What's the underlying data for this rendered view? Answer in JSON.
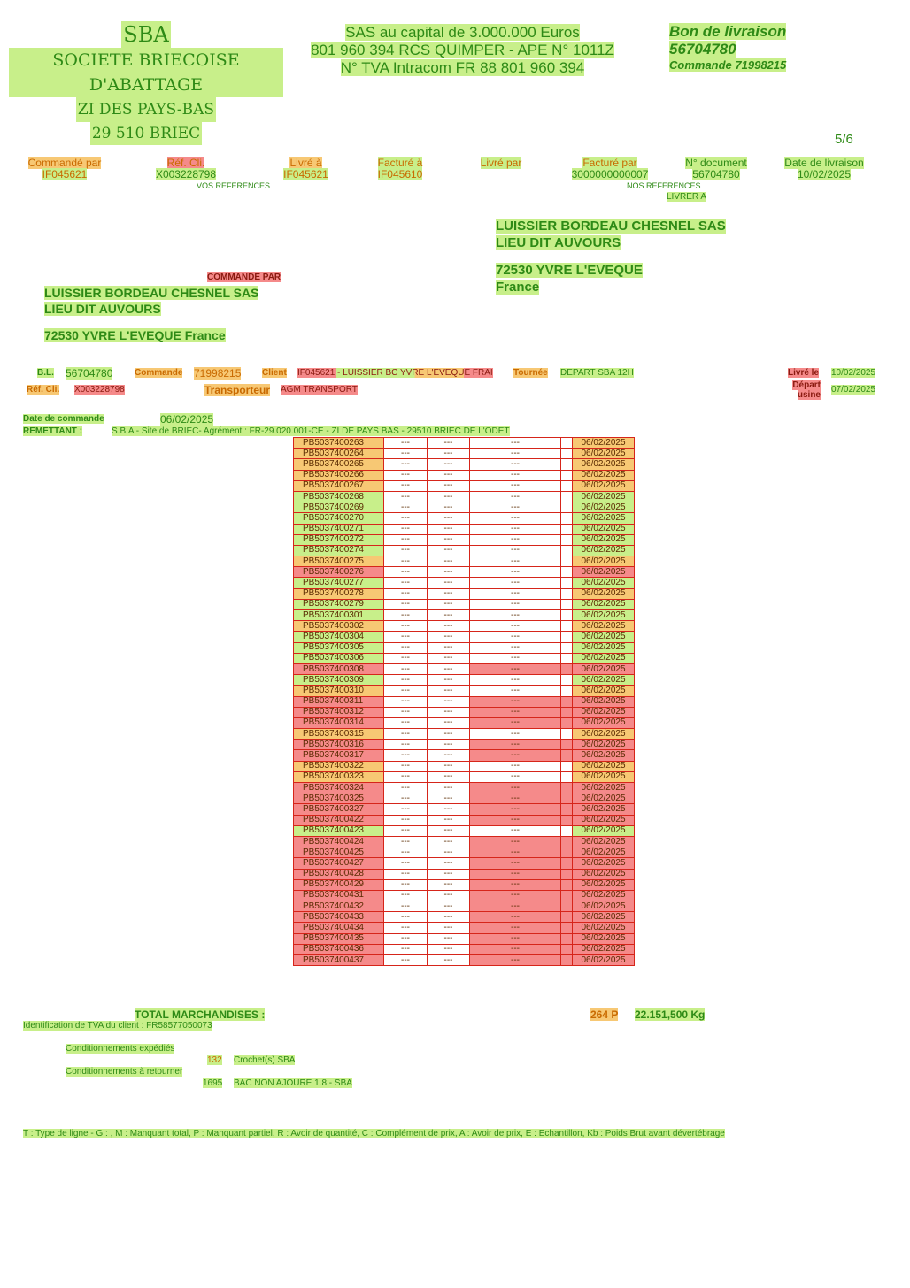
{
  "company": {
    "name": "SBA",
    "fullname": "SOCIETE BRIECOISE D'ABATTAGE",
    "zone": "ZI DES PAYS-BAS",
    "city": "29 510 BRIEC"
  },
  "legal": {
    "line1": "SAS au capital de 3.000.000 Euros",
    "line2": "801 960 394 RCS QUIMPER - APE N° 1011Z",
    "line3": "N° TVA Intracom FR 88 801 960 394"
  },
  "doc": {
    "title": "Bon de livraison",
    "number": "56704780",
    "commande": "Commande 71998215",
    "page": "5/6"
  },
  "header_fields": [
    {
      "label": "Commandé par",
      "value": "IF045621"
    },
    {
      "label": "Réf. Cli.",
      "value": "X003228798"
    },
    {
      "label": "Livré à",
      "value": "IF045621"
    },
    {
      "label": "Facturé à",
      "value": "IF045610"
    },
    {
      "label": "Livré par",
      "value": ""
    },
    {
      "label": "Facturé par",
      "value": "3000000000007"
    },
    {
      "label": "N° document",
      "value": "56704780"
    },
    {
      "label": "Date de livraison",
      "value": "10/02/2025"
    }
  ],
  "vos_references": "VOS REFERENCES",
  "nos_references": "NOS REFERENCES",
  "livrer_a": {
    "label": "LIVRER A",
    "name": "LUISSIER BORDEAU CHESNEL SAS",
    "street": "LIEU DIT AUVOURS",
    "city": "72530 YVRE L'EVEQUE",
    "country": "France"
  },
  "commande_par": {
    "label": "COMMANDE PAR",
    "name": "LUISSIER BORDEAU CHESNEL SAS",
    "street": "LIEU DIT AUVOURS",
    "city": "72530 YVRE L'EVEQUE France"
  },
  "info": {
    "bl_label": "B.L.",
    "bl": "56704780",
    "commande_label": "Commande",
    "commande": "71998215",
    "client_label": "Client",
    "client": "IF045621 - LUISSIER BC YVRE L'EVEQUE FRAI",
    "tournee_label": "Tournée",
    "tournee": "DEPART SBA 12H",
    "livre_le_label": "Livré le",
    "livre_le": "10/02/2025",
    "ref_label": "Réf. Cli.",
    "ref": "X003228798",
    "transporteur_label": "Transporteur",
    "transporteur": "AGM TRANSPORT",
    "depart_label": "Départ usine",
    "depart": "07/02/2025",
    "date_cmd_label": "Date de commande",
    "date_cmd": "06/02/2025",
    "remettant_label": "REMETTANT :",
    "remettant": "S.B.A - Site de BRIEC- Agrément : FR-29.020.001-CE - ZI DE PAYS BAS - 29510 BRIEC DE L'ODET"
  },
  "lines": [
    {
      "ref": "PB5037400263",
      "a": "---",
      "b": "---",
      "c": "---",
      "date": "06/02/2025",
      "bg": "o"
    },
    {
      "ref": "PB5037400264",
      "a": "---",
      "b": "---",
      "c": "---",
      "date": "06/02/2025",
      "bg": "o"
    },
    {
      "ref": "PB5037400265",
      "a": "---",
      "b": "---",
      "c": "---",
      "date": "06/02/2025",
      "bg": "o"
    },
    {
      "ref": "PB5037400266",
      "a": "---",
      "b": "---",
      "c": "---",
      "date": "06/02/2025",
      "bg": "o"
    },
    {
      "ref": "PB5037400267",
      "a": "---",
      "b": "---",
      "c": "---",
      "date": "06/02/2025",
      "bg": "o"
    },
    {
      "ref": "PB5037400268",
      "a": "---",
      "b": "---",
      "c": "---",
      "date": "06/02/2025",
      "bg": "g"
    },
    {
      "ref": "PB5037400269",
      "a": "---",
      "b": "---",
      "c": "---",
      "date": "06/02/2025",
      "bg": "g"
    },
    {
      "ref": "PB5037400270",
      "a": "---",
      "b": "---",
      "c": "---",
      "date": "06/02/2025",
      "bg": "g"
    },
    {
      "ref": "PB5037400271",
      "a": "---",
      "b": "---",
      "c": "---",
      "date": "06/02/2025",
      "bg": "g"
    },
    {
      "ref": "PB5037400272",
      "a": "---",
      "b": "---",
      "c": "---",
      "date": "06/02/2025",
      "bg": "g"
    },
    {
      "ref": "PB5037400274",
      "a": "---",
      "b": "---",
      "c": "---",
      "date": "06/02/2025",
      "bg": "g"
    },
    {
      "ref": "PB5037400275",
      "a": "---",
      "b": "---",
      "c": "---",
      "date": "06/02/2025",
      "bg": "o"
    },
    {
      "ref": "PB5037400276",
      "a": "---",
      "b": "---",
      "c": "---",
      "date": "06/02/2025",
      "bg": "r"
    },
    {
      "ref": "PB5037400277",
      "a": "---",
      "b": "---",
      "c": "---",
      "date": "06/02/2025",
      "bg": "g"
    },
    {
      "ref": "PB5037400278",
      "a": "---",
      "b": "---",
      "c": "---",
      "date": "06/02/2025",
      "bg": "o"
    },
    {
      "ref": "PB5037400279",
      "a": "---",
      "b": "---",
      "c": "---",
      "date": "06/02/2025",
      "bg": "g"
    },
    {
      "ref": "PB5037400301",
      "a": "---",
      "b": "---",
      "c": "---",
      "date": "06/02/2025",
      "bg": "g"
    },
    {
      "ref": "PB5037400302",
      "a": "---",
      "b": "---",
      "c": "---",
      "date": "06/02/2025",
      "bg": "o"
    },
    {
      "ref": "PB5037400304",
      "a": "---",
      "b": "---",
      "c": "---",
      "date": "06/02/2025",
      "bg": "g"
    },
    {
      "ref": "PB5037400305",
      "a": "---",
      "b": "---",
      "c": "---",
      "date": "06/02/2025",
      "bg": "g"
    },
    {
      "ref": "PB5037400306",
      "a": "---",
      "b": "---",
      "c": "---",
      "date": "06/02/2025",
      "bg": "g"
    },
    {
      "ref": "PB5037400308",
      "a": "---",
      "b": "---",
      "c": "---",
      "date": "06/02/2025",
      "bg": "r"
    },
    {
      "ref": "PB5037400309",
      "a": "---",
      "b": "---",
      "c": "---",
      "date": "06/02/2025",
      "bg": "g"
    },
    {
      "ref": "PB5037400310",
      "a": "---",
      "b": "---",
      "c": "---",
      "date": "06/02/2025",
      "bg": "o"
    },
    {
      "ref": "PB5037400311",
      "a": "---",
      "b": "---",
      "c": "---",
      "date": "06/02/2025",
      "bg": "r"
    },
    {
      "ref": "PB5037400312",
      "a": "---",
      "b": "---",
      "c": "---",
      "date": "06/02/2025",
      "bg": "r"
    },
    {
      "ref": "PB5037400314",
      "a": "---",
      "b": "---",
      "c": "---",
      "date": "06/02/2025",
      "bg": "r"
    },
    {
      "ref": "PB5037400315",
      "a": "---",
      "b": "---",
      "c": "---",
      "date": "06/02/2025",
      "bg": "o"
    },
    {
      "ref": "PB5037400316",
      "a": "---",
      "b": "---",
      "c": "---",
      "date": "06/02/2025",
      "bg": "r"
    },
    {
      "ref": "PB5037400317",
      "a": "---",
      "b": "---",
      "c": "---",
      "date": "06/02/2025",
      "bg": "r"
    },
    {
      "ref": "PB5037400322",
      "a": "---",
      "b": "---",
      "c": "---",
      "date": "06/02/2025",
      "bg": "o"
    },
    {
      "ref": "PB5037400323",
      "a": "---",
      "b": "---",
      "c": "---",
      "date": "06/02/2025",
      "bg": "o"
    },
    {
      "ref": "PB5037400324",
      "a": "---",
      "b": "---",
      "c": "---",
      "date": "06/02/2025",
      "bg": "r"
    },
    {
      "ref": "PB5037400325",
      "a": "---",
      "b": "---",
      "c": "---",
      "date": "06/02/2025",
      "bg": "r"
    },
    {
      "ref": "PB5037400327",
      "a": "---",
      "b": "---",
      "c": "---",
      "date": "06/02/2025",
      "bg": "r"
    },
    {
      "ref": "PB5037400422",
      "a": "---",
      "b": "---",
      "c": "---",
      "date": "06/02/2025",
      "bg": "r"
    },
    {
      "ref": "PB5037400423",
      "a": "---",
      "b": "---",
      "c": "---",
      "date": "06/02/2025",
      "bg": "g"
    },
    {
      "ref": "PB5037400424",
      "a": "---",
      "b": "---",
      "c": "---",
      "date": "06/02/2025",
      "bg": "r"
    },
    {
      "ref": "PB5037400425",
      "a": "---",
      "b": "---",
      "c": "---",
      "date": "06/02/2025",
      "bg": "r"
    },
    {
      "ref": "PB5037400427",
      "a": "---",
      "b": "---",
      "c": "---",
      "date": "06/02/2025",
      "bg": "r"
    },
    {
      "ref": "PB5037400428",
      "a": "---",
      "b": "---",
      "c": "---",
      "date": "06/02/2025",
      "bg": "r"
    },
    {
      "ref": "PB5037400429",
      "a": "---",
      "b": "---",
      "c": "---",
      "date": "06/02/2025",
      "bg": "r"
    },
    {
      "ref": "PB5037400431",
      "a": "---",
      "b": "---",
      "c": "---",
      "date": "06/02/2025",
      "bg": "r"
    },
    {
      "ref": "PB5037400432",
      "a": "---",
      "b": "---",
      "c": "---",
      "date": "06/02/2025",
      "bg": "r"
    },
    {
      "ref": "PB5037400433",
      "a": "---",
      "b": "---",
      "c": "---",
      "date": "06/02/2025",
      "bg": "r"
    },
    {
      "ref": "PB5037400434",
      "a": "---",
      "b": "---",
      "c": "---",
      "date": "06/02/2025",
      "bg": "r"
    },
    {
      "ref": "PB5037400435",
      "a": "---",
      "b": "---",
      "c": "---",
      "date": "06/02/2025",
      "bg": "r"
    },
    {
      "ref": "PB5037400436",
      "a": "---",
      "b": "---",
      "c": "---",
      "date": "06/02/2025",
      "bg": "r"
    },
    {
      "ref": "PB5037400437",
      "a": "---",
      "b": "---",
      "c": "---",
      "date": "06/02/2025",
      "bg": "r"
    }
  ],
  "totals": {
    "label": "TOTAL MARCHANDISES :",
    "pieces": "264 P",
    "weight": "22.151,500 Kg",
    "tva_client": "Identification de TVA du client : FR58577050073"
  },
  "conditionnements": {
    "expedies_label": "Conditionnements expédiés",
    "expedies_qty": "132",
    "expedies_desc": "Crochet(s) SBA",
    "retourner_label": "Conditionnements à retourner",
    "retourner_qty": "1695",
    "retourner_desc": "BAC NON AJOURE 1.8 - SBA"
  },
  "legend": "T : Type de ligne - G : , M : Manquant total, P : Manquant partiel, R : Avoir de quantité, C : Complément de prix, A : Avoir de prix, E : Echantillon, Kb : Poids Brut avant dévertébrage"
}
